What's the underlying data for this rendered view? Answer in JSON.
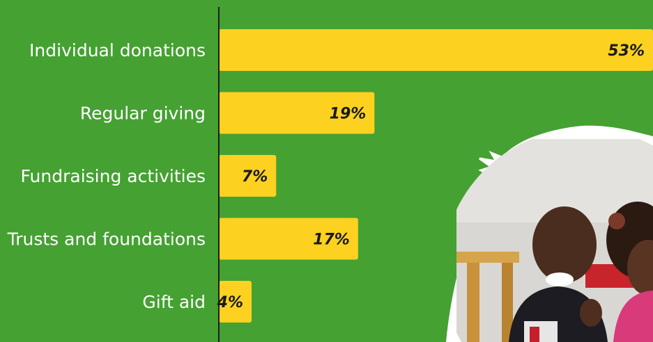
{
  "colors": {
    "background": "#45a132",
    "bar": "#fdd11f",
    "axis": "#1d1d1d",
    "label": "#ffffff",
    "value": "#1a1a1a"
  },
  "photo": {
    "name": "children-photo",
    "description_icon": "photo-children-circle"
  },
  "chart_data": {
    "type": "bar",
    "orientation": "horizontal",
    "title": "",
    "xlabel": "",
    "ylabel": "",
    "unit": "%",
    "xlim": [
      0,
      53
    ],
    "categories": [
      "Individual donations",
      "Regular giving",
      "Fundraising activities",
      "Trusts and foundations",
      "Gift aid"
    ],
    "values": [
      53,
      19,
      7,
      17,
      4
    ],
    "value_labels": [
      "53%",
      "19%",
      "7%",
      "17%",
      "4%"
    ],
    "grid": false,
    "legend": "none"
  }
}
